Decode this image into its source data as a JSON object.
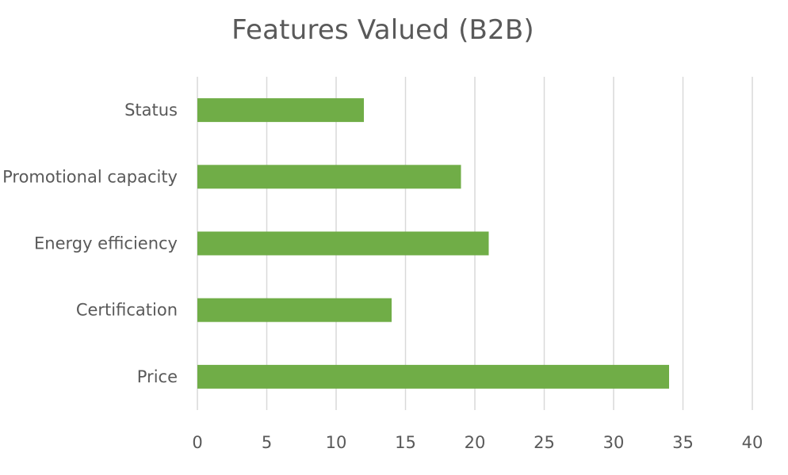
{
  "chart_data": {
    "type": "bar",
    "orientation": "horizontal",
    "title": "Features Valued (B2B)",
    "categories": [
      "Status",
      "Promotional capacity",
      "Energy efficiency",
      "Certification",
      "Price"
    ],
    "values": [
      12,
      19,
      21,
      14,
      34
    ],
    "xlim": [
      0,
      40
    ],
    "xticks": [
      0,
      5,
      10,
      15,
      20,
      25,
      30,
      35,
      40
    ],
    "xlabel": "",
    "ylabel": "",
    "grid": "vertical",
    "legend": "none",
    "bar_color": "#70ad47",
    "grid_color": "#d9d9d9",
    "text_color": "#595959"
  }
}
